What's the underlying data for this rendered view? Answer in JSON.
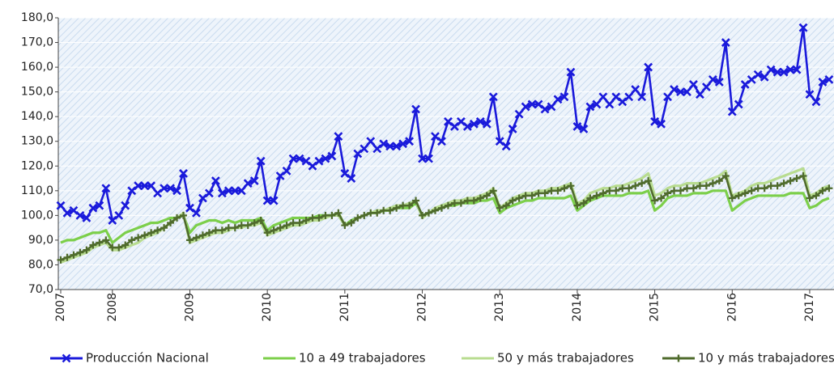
{
  "chart_data": {
    "type": "line",
    "categories": [
      "2007",
      null,
      null,
      null,
      null,
      null,
      null,
      null,
      "2008",
      null,
      null,
      null,
      null,
      null,
      null,
      null,
      null,
      null,
      null,
      null,
      "2009",
      null,
      null,
      null,
      null,
      null,
      null,
      null,
      null,
      null,
      null,
      null,
      "2010",
      null,
      null,
      null,
      null,
      null,
      null,
      null,
      null,
      null,
      null,
      null,
      "2011",
      null,
      null,
      null,
      null,
      null,
      null,
      null,
      null,
      null,
      null,
      null,
      "2012",
      null,
      null,
      null,
      null,
      null,
      null,
      null,
      null,
      null,
      null,
      null,
      "2013",
      null,
      null,
      null,
      null,
      null,
      null,
      null,
      null,
      null,
      null,
      null,
      "2014",
      null,
      null,
      null,
      null,
      null,
      null,
      null,
      null,
      null,
      null,
      null,
      "2015",
      null,
      null,
      null,
      null,
      null,
      null,
      null,
      null,
      null,
      null,
      null,
      "2016",
      null,
      null,
      null,
      null,
      null,
      null,
      null,
      null,
      null,
      null,
      null,
      "2017",
      null,
      null,
      null
    ],
    "series": [
      {
        "name": "Producción Nacional",
        "color": "#1a1adb",
        "marker": "x",
        "values": [
          104,
          101,
          102,
          100,
          99,
          103,
          104,
          111,
          98,
          100,
          104,
          110,
          112,
          112,
          112,
          109,
          111,
          111,
          110,
          117,
          103,
          101,
          107,
          109,
          114,
          109,
          110,
          110,
          110,
          113,
          114,
          122,
          106,
          106,
          116,
          118,
          123,
          123,
          122,
          120,
          122,
          123,
          124,
          132,
          117,
          115,
          125,
          127,
          130,
          127,
          129,
          128,
          128,
          129,
          130,
          143,
          123,
          123,
          132,
          130,
          138,
          136,
          138,
          136,
          137,
          138,
          137,
          148,
          130,
          128,
          135,
          141,
          144,
          145,
          145,
          143,
          144,
          147,
          148,
          158,
          136,
          135,
          144,
          145,
          148,
          145,
          148,
          146,
          148,
          151,
          148,
          160,
          138,
          137,
          148,
          151,
          150,
          150,
          153,
          149,
          152,
          155,
          154,
          170,
          142,
          145,
          153,
          155,
          157,
          156,
          159,
          158,
          158,
          159,
          159,
          176,
          149,
          146,
          154,
          155
        ]
      },
      {
        "name": "10 a 49 trabajadores",
        "color": "#7ccf4a",
        "values": [
          89,
          90,
          90,
          91,
          92,
          93,
          93,
          94,
          89,
          91,
          93,
          94,
          95,
          96,
          97,
          97,
          98,
          99,
          99,
          100,
          93,
          96,
          97,
          98,
          98,
          97,
          98,
          97,
          98,
          98,
          98,
          99,
          94,
          96,
          97,
          98,
          99,
          99,
          99,
          99,
          100,
          100,
          100,
          101,
          96,
          98,
          99,
          100,
          101,
          101,
          102,
          102,
          103,
          103,
          103,
          105,
          100,
          101,
          102,
          103,
          104,
          104,
          105,
          105,
          105,
          106,
          106,
          107,
          101,
          103,
          104,
          105,
          106,
          106,
          107,
          107,
          107,
          107,
          107,
          108,
          102,
          104,
          106,
          107,
          108,
          108,
          108,
          108,
          109,
          109,
          109,
          110,
          102,
          104,
          107,
          108,
          108,
          108,
          109,
          109,
          109,
          110,
          110,
          110,
          102,
          104,
          106,
          107,
          108,
          108,
          108,
          108,
          108,
          109,
          109,
          109,
          103,
          104,
          106,
          107
        ]
      },
      {
        "name": "50 y más trabajadores",
        "color": "#b8dc90",
        "values": [
          81,
          82,
          83,
          84,
          85,
          87,
          88,
          89,
          86,
          86,
          87,
          88,
          89,
          91,
          92,
          93,
          95,
          97,
          99,
          101,
          89,
          90,
          91,
          92,
          93,
          93,
          94,
          95,
          95,
          96,
          96,
          97,
          92,
          93,
          94,
          95,
          96,
          96,
          97,
          98,
          98,
          99,
          100,
          100,
          96,
          97,
          99,
          100,
          101,
          102,
          102,
          103,
          104,
          104,
          105,
          106,
          99,
          101,
          103,
          104,
          105,
          106,
          106,
          107,
          107,
          108,
          109,
          111,
          103,
          105,
          107,
          108,
          109,
          109,
          110,
          110,
          111,
          111,
          112,
          113,
          105,
          106,
          109,
          110,
          111,
          111,
          112,
          112,
          113,
          114,
          115,
          117,
          108,
          109,
          111,
          112,
          112,
          113,
          113,
          113,
          114,
          115,
          116,
          118,
          108,
          109,
          110,
          112,
          113,
          113,
          114,
          115,
          116,
          117,
          118,
          119,
          108,
          109,
          111,
          112
        ]
      },
      {
        "name": "10 y más trabajadores",
        "color": "#4f6b2c",
        "marker": "+",
        "values": [
          82,
          83,
          84,
          85,
          86,
          88,
          89,
          90,
          87,
          87,
          88,
          90,
          91,
          92,
          93,
          94,
          95,
          97,
          99,
          100,
          90,
          91,
          92,
          93,
          94,
          94,
          95,
          95,
          96,
          96,
          97,
          98,
          93,
          94,
          95,
          96,
          97,
          97,
          98,
          99,
          99,
          100,
          100,
          101,
          96,
          97,
          99,
          100,
          101,
          101,
          102,
          102,
          103,
          104,
          104,
          106,
          100,
          101,
          102,
          103,
          104,
          105,
          105,
          106,
          106,
          107,
          108,
          110,
          103,
          104,
          106,
          107,
          108,
          108,
          109,
          109,
          110,
          110,
          111,
          112,
          104,
          105,
          107,
          108,
          109,
          110,
          110,
          111,
          111,
          112,
          113,
          114,
          106,
          107,
          109,
          110,
          110,
          111,
          111,
          112,
          112,
          113,
          114,
          116,
          107,
          108,
          109,
          110,
          111,
          111,
          112,
          112,
          113,
          114,
          115,
          116,
          107,
          108,
          110,
          111
        ]
      }
    ],
    "ylim": [
      70,
      180
    ],
    "yticks": [
      {
        "value": 70,
        "label": "70,0"
      },
      {
        "value": 80,
        "label": "80,0"
      },
      {
        "value": 90,
        "label": "90,0"
      },
      {
        "value": 100,
        "label": "100,0"
      },
      {
        "value": 110,
        "label": "110,0"
      },
      {
        "value": 120,
        "label": "120,0"
      },
      {
        "value": 130,
        "label": "130,0"
      },
      {
        "value": 140,
        "label": "140,0"
      },
      {
        "value": 150,
        "label": "150,0"
      },
      {
        "value": 160,
        "label": "160,0"
      },
      {
        "value": 170,
        "label": "170,0"
      },
      {
        "value": 180,
        "label": "180,0"
      }
    ],
    "grid": true,
    "legend": "bottom"
  }
}
